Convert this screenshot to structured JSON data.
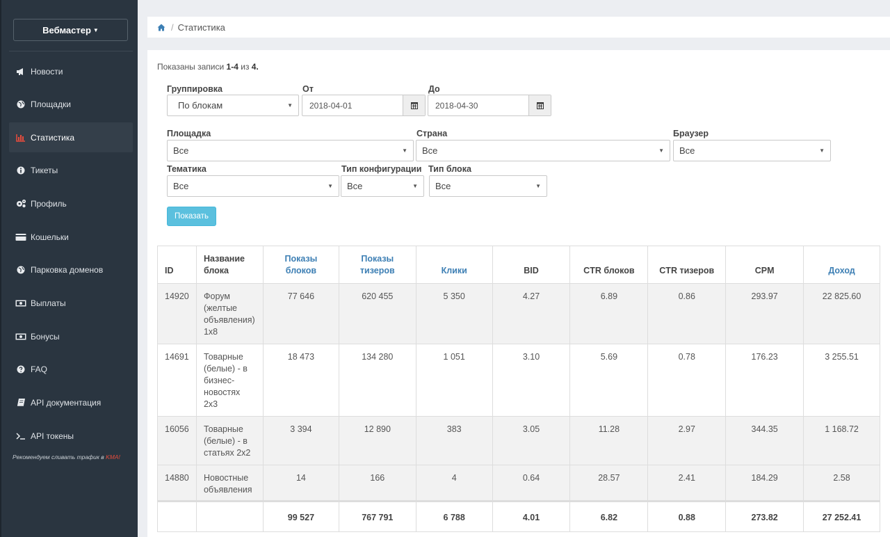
{
  "sidebar": {
    "user_menu": "Вебмастер",
    "items": [
      {
        "label": "Новости",
        "icon": "bullhorn-icon"
      },
      {
        "label": "Площадки",
        "icon": "globe-icon"
      },
      {
        "label": "Статистика",
        "icon": "bar-chart-icon"
      },
      {
        "label": "Тикеты",
        "icon": "info-circle-icon"
      },
      {
        "label": "Профиль",
        "icon": "gears-icon"
      },
      {
        "label": "Кошельки",
        "icon": "credit-card-icon"
      },
      {
        "label": "Парковка доменов",
        "icon": "globe-icon"
      },
      {
        "label": "Выплаты",
        "icon": "money-icon"
      },
      {
        "label": "Бонусы",
        "icon": "money-icon"
      },
      {
        "label": "FAQ",
        "icon": "question-circle-icon"
      },
      {
        "label": "API документация",
        "icon": "book-icon"
      },
      {
        "label": "API токены",
        "icon": "terminal-icon"
      }
    ],
    "active_index": 2,
    "promo_text": "Рекомендуем сливать трафик в",
    "promo_highlight": "KMA!"
  },
  "breadcrumb": {
    "current": "Статистика"
  },
  "summary": {
    "prefix": "Показаны записи",
    "range": "1-4",
    "of": "из",
    "total": "4",
    "suffix": "."
  },
  "filters": {
    "grouping": {
      "label": "Группировка",
      "value": "По блокам"
    },
    "date_from": {
      "label": "От",
      "value": "2018-04-01"
    },
    "date_to": {
      "label": "До",
      "value": "2018-04-30"
    },
    "site": {
      "label": "Площадка",
      "value": "Все"
    },
    "country": {
      "label": "Страна",
      "value": "Все"
    },
    "browser": {
      "label": "Браузер",
      "value": "Все"
    },
    "topic": {
      "label": "Тематика",
      "value": "Все"
    },
    "config_type": {
      "label": "Тип конфигурации",
      "value": "Все"
    },
    "block_type": {
      "label": "Тип блока",
      "value": "Все"
    },
    "show_button": "Показать"
  },
  "table": {
    "headers": [
      {
        "line1": "ID",
        "line2": ""
      },
      {
        "line1": "Название",
        "line2": "блока"
      },
      {
        "line1": "Показы",
        "line2": "блоков"
      },
      {
        "line1": "Показы",
        "line2": "тизеров"
      },
      {
        "line1": "Клики",
        "line2": ""
      },
      {
        "line1": "BID",
        "line2": ""
      },
      {
        "line1": "CTR блоков",
        "line2": ""
      },
      {
        "line1": "CTR тизеров",
        "line2": ""
      },
      {
        "line1": "CPM",
        "line2": ""
      },
      {
        "line1": "Доход",
        "line2": ""
      }
    ],
    "rows": [
      {
        "id": "14920",
        "name": [
          "Форум",
          "(желтые",
          "объявления)",
          "1x8"
        ],
        "block_views": "77 646",
        "teaser_views": "620 455",
        "clicks": "5 350",
        "bid": "4.27",
        "ctr_blocks": "6.89",
        "ctr_teasers": "0.86",
        "cpm": "293.97",
        "income": "22 825.60"
      },
      {
        "id": "14691",
        "name": [
          "Товарные",
          "(белые) - в",
          "бизнес-",
          "новостях",
          "2x3"
        ],
        "block_views": "18 473",
        "teaser_views": "134 280",
        "clicks": "1 051",
        "bid": "3.10",
        "ctr_blocks": "5.69",
        "ctr_teasers": "0.78",
        "cpm": "176.23",
        "income": "3 255.51"
      },
      {
        "id": "16056",
        "name": [
          "Товарные",
          "(белые) - в",
          "статьях 2x2"
        ],
        "block_views": "3 394",
        "teaser_views": "12 890",
        "clicks": "383",
        "bid": "3.05",
        "ctr_blocks": "11.28",
        "ctr_teasers": "2.97",
        "cpm": "344.35",
        "income": "1 168.72"
      },
      {
        "id": "14880",
        "name": [
          "Новостные",
          "объявления"
        ],
        "block_views": "14",
        "teaser_views": "166",
        "clicks": "4",
        "bid": "0.64",
        "ctr_blocks": "28.57",
        "ctr_teasers": "2.41",
        "cpm": "184.29",
        "income": "2.58"
      }
    ],
    "totals": {
      "block_views": "99 527",
      "teaser_views": "767 791",
      "clicks": "6 788",
      "bid": "4.01",
      "ctr_blocks": "6.82",
      "ctr_teasers": "0.88",
      "cpm": "273.82",
      "income": "27 252.41"
    }
  },
  "colors": {
    "sidebar_bg": "#2a3540",
    "accent_blue": "#3d7fb4",
    "button_info": "#5bc0de",
    "active_icon": "#e74c3c"
  }
}
